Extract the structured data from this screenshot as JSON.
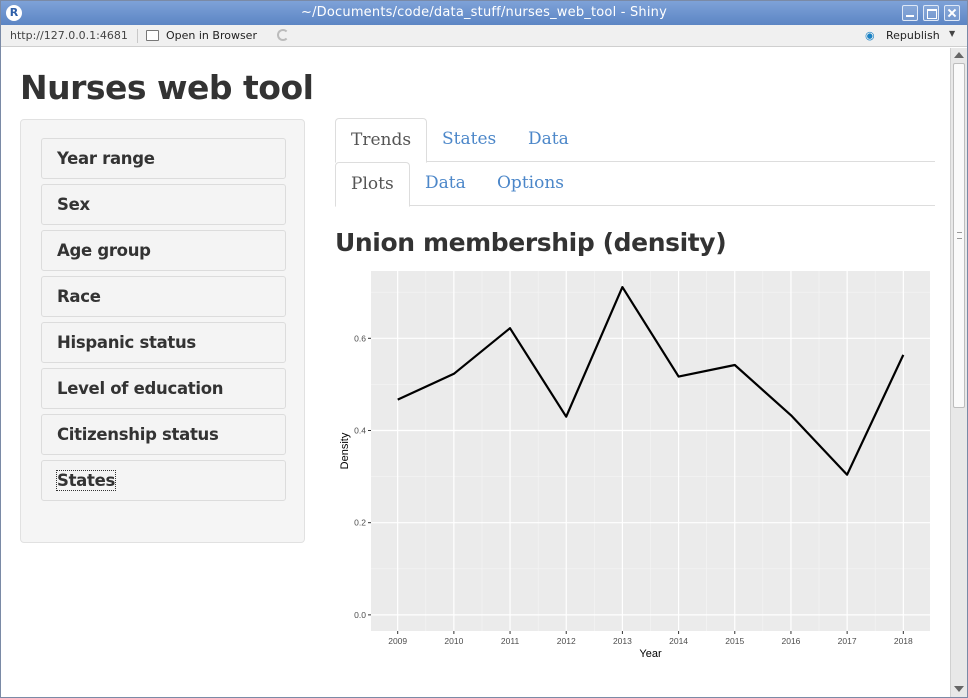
{
  "window": {
    "title": "~/Documents/code/data_stuff/nurses_web_tool - Shiny",
    "app_icon": "R"
  },
  "toolbar": {
    "url": "http://127.0.0.1:4681",
    "open_in_browser": "Open in Browser",
    "republish": "Republish"
  },
  "app": {
    "title": "Nurses web tool"
  },
  "sidebar": {
    "items": [
      {
        "label": "Year range"
      },
      {
        "label": "Sex"
      },
      {
        "label": "Age group"
      },
      {
        "label": "Race"
      },
      {
        "label": "Hispanic status"
      },
      {
        "label": "Level of education"
      },
      {
        "label": "Citizenship status"
      },
      {
        "label": "States"
      }
    ]
  },
  "tabs": {
    "top": [
      {
        "label": "Trends",
        "active": true
      },
      {
        "label": "States"
      },
      {
        "label": "Data"
      }
    ],
    "sub": [
      {
        "label": "Plots",
        "active": true
      },
      {
        "label": "Data"
      },
      {
        "label": "Options"
      }
    ]
  },
  "plot": {
    "title": "Union membership (density)"
  },
  "colors": {
    "link": "#4c87c9",
    "panel_bg": "#ebebeb",
    "line": "#000000"
  },
  "chart_data": {
    "type": "line",
    "x": [
      2009,
      2010,
      2011,
      2012,
      2013,
      2014,
      2015,
      2016,
      2017,
      2018
    ],
    "y": [
      0.467,
      0.523,
      0.622,
      0.43,
      0.711,
      0.517,
      0.542,
      0.433,
      0.304,
      0.564
    ],
    "xlabel": "Year",
    "ylabel": "Density",
    "xticks": [
      "2009",
      "2010",
      "2011",
      "2012",
      "2013",
      "2014",
      "2015",
      "2016",
      "2017",
      "2018"
    ],
    "yticks": [
      "0.0",
      "0.2",
      "0.4",
      "0.6"
    ],
    "ytick_values": [
      0.0,
      0.2,
      0.4,
      0.6
    ],
    "ylim": [
      -0.035,
      0.746
    ],
    "grid": true
  }
}
